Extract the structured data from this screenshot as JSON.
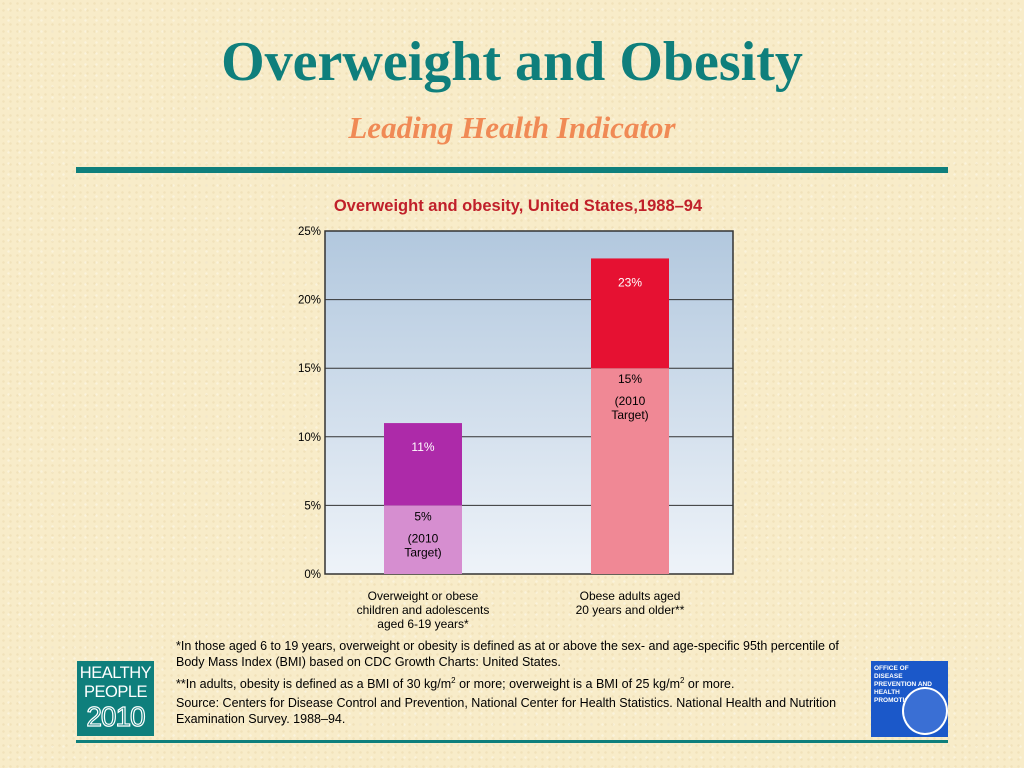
{
  "slide": {
    "title": "Overweight and Obesity",
    "subtitle": "Leading Health Indicator",
    "accent_color": "#0f7f7c",
    "subtitle_color": "#f08a55"
  },
  "chart_data": {
    "type": "bar",
    "stacked": true,
    "title": "Overweight and obesity, United States,1988–94",
    "title_color": "#c0202a",
    "ylim": [
      0,
      25
    ],
    "yticks": [
      0,
      5,
      10,
      15,
      20,
      25
    ],
    "ytick_labels": [
      "0%",
      "5%",
      "10%",
      "15%",
      "20%",
      "25%"
    ],
    "grid": true,
    "categories": [
      [
        "Overweight or obese",
        "children and adolescents",
        "aged 6-19 years*"
      ],
      [
        "Obese adults aged",
        "20 years and older**"
      ]
    ],
    "bars": [
      {
        "total": 11,
        "total_label": "11%",
        "target": 5,
        "target_label": "5%",
        "target_note": [
          "(2010",
          "Target)"
        ],
        "target_color": "#d68ed0",
        "top_color": "#ad2aa9"
      },
      {
        "total": 23,
        "total_label": "23%",
        "target": 15,
        "target_label": "15%",
        "target_note": [
          "(2010",
          "Target)"
        ],
        "target_color": "#f08895",
        "top_color": "#e61132"
      }
    ]
  },
  "footnotes": {
    "note1": "*In those aged 6 to 19 years, overweight or obesity is defined as at or above the sex- and age-specific 95th percentile of Body Mass Index (BMI) based on CDC Growth Charts: United States.",
    "note2_a": "**In adults, obesity is defined as a BMI of 30 kg/m",
    "note2_sup1": "2",
    "note2_b": " or more; overweight is a BMI of 25 kg/m",
    "note2_sup2": "2",
    "note2_c": " or more.",
    "source": "Source: Centers for Disease Control and Prevention, National Center for Health Statistics. National Health and Nutrition Examination Survey. 1988–94."
  },
  "logos": {
    "healthy_people": [
      "HEALTHY",
      "PEOPLE",
      "2010"
    ],
    "odphp": [
      "Office of",
      "Disease",
      "Prevention and",
      "Health",
      "Promotion"
    ]
  }
}
